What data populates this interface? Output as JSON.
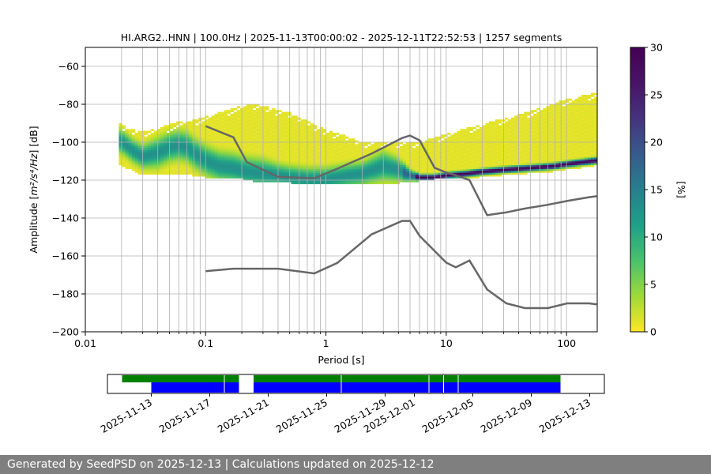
{
  "footer": "Generated by SeedPSD on 2025-12-13 | Calculations updated on 2025-12-12",
  "colors": {
    "noise_model": "#666666",
    "grid": "#b0b0b0",
    "timeline_green": "#008000",
    "timeline_blue": "#0000ff",
    "footer_bg": "#7f7f7f"
  },
  "chart_data": [
    {
      "type": "heatmap",
      "title": "HI.ARG2..HNN | 100.0Hz | 2025-11-13T00:00:02 - 2025-12-11T22:52:53 | 1257 segments",
      "xlabel": "Period [s]",
      "ylabel_prefix": "Amplitude [",
      "ylabel_math": "m²/s⁴/Hz",
      "ylabel_suffix": "] [dB]",
      "xscale": "log",
      "xlim": [
        0.01,
        180
      ],
      "ylim": [
        -200,
        -50
      ],
      "grid": true,
      "x_major_ticks": [
        0.01,
        0.1,
        1,
        10,
        100
      ],
      "x_tick_labels": [
        "0.01",
        "0.1",
        "1",
        "10",
        "100"
      ],
      "y_ticks": [
        -200,
        -180,
        -160,
        -140,
        -120,
        -100,
        -80,
        -60
      ],
      "y_tick_labels": [
        "−200",
        "−180",
        "−160",
        "−140",
        "−120",
        "−100",
        "−80",
        "−60"
      ],
      "colorbar": {
        "label": "[%]",
        "range": [
          0,
          30
        ],
        "ticks": [
          0,
          5,
          10,
          15,
          20,
          25,
          30
        ],
        "tick_labels": [
          "0",
          "5",
          "10",
          "15",
          "20",
          "25",
          "30"
        ],
        "colormap": "viridis_r"
      },
      "psd_mode_curve": {
        "period": [
          0.02,
          0.025,
          0.03,
          0.04,
          0.05,
          0.06,
          0.07,
          0.08,
          0.1,
          0.13,
          0.17,
          0.22,
          0.3,
          0.4,
          0.5,
          0.7,
          1,
          1.5,
          2,
          3,
          4,
          5,
          6,
          8,
          10,
          15,
          20,
          30,
          50,
          80,
          100,
          180
        ],
        "amplitude_db": [
          -100,
          -105,
          -108,
          -106,
          -103,
          -102,
          -103,
          -106,
          -110,
          -113,
          -114,
          -116,
          -117,
          -118,
          -119,
          -120,
          -120,
          -118,
          -117,
          -113,
          -115,
          -118,
          -119,
          -119,
          -118,
          -117,
          -116,
          -115,
          -114,
          -113,
          -112,
          -110
        ],
        "spread_db": [
          4,
          4,
          4,
          5,
          5,
          5,
          5,
          5,
          5,
          5,
          5,
          5,
          5,
          4,
          4,
          4,
          4,
          4,
          4,
          5,
          4,
          2,
          1,
          1,
          1,
          1,
          1,
          1,
          1,
          1,
          1,
          1
        ]
      },
      "low_percent_envelope": {
        "period": [
          0.018,
          0.03,
          0.05,
          0.1,
          0.2,
          0.3,
          0.5,
          1,
          2,
          4,
          6,
          8,
          10,
          20,
          30,
          50,
          100,
          180
        ],
        "upper_db": [
          -91,
          -95,
          -92,
          -87,
          -81,
          -81,
          -85,
          -94,
          -100,
          -101,
          -100,
          -98,
          -96,
          -91,
          -88,
          -84,
          -78,
          -74
        ],
        "lower_db": [
          -112,
          -117,
          -117,
          -118,
          -119,
          -121,
          -121,
          -122,
          -122,
          -121,
          -120,
          -119,
          -119,
          -118,
          -117,
          -116,
          -115,
          -112
        ]
      },
      "series": [
        {
          "period": [
            0.1,
            0.17,
            0.22,
            0.4,
            0.8,
            1.24,
            2.4,
            4.3,
            5,
            6,
            8,
            10,
            12,
            15.6,
            21.9,
            31.6,
            45,
            70,
            101,
            154,
            178
          ],
          "amplitude_db": [
            -91.5,
            -97.4,
            -110.5,
            -118.3,
            -119,
            -114,
            -106,
            -97.8,
            -96.5,
            -99,
            -113.5,
            -116,
            -117.5,
            -120,
            -138.5,
            -137,
            -135,
            -133,
            -131,
            -129,
            -128.5
          ]
        },
        {
          "period": [
            0.1,
            0.17,
            0.4,
            0.8,
            1.24,
            2.4,
            4.3,
            5,
            6,
            10,
            12,
            15.6,
            21.9,
            31.6,
            45,
            70,
            101,
            154,
            178
          ],
          "amplitude_db": [
            -168,
            -166.7,
            -166.7,
            -169.2,
            -163.7,
            -148.6,
            -141.5,
            -141.5,
            -149.4,
            -163.5,
            -166,
            -162.4,
            -177.7,
            -185,
            -187.5,
            -187.5,
            -185,
            -185,
            -185.5
          ]
        }
      ]
    },
    {
      "type": "timeline",
      "xlim": [
        "2025-11-10",
        "2025-12-14"
      ],
      "x_ticks": [
        "2025-11-13",
        "2025-11-17",
        "2025-11-21",
        "2025-11-25",
        "2025-11-29",
        "2025-12-01",
        "2025-12-05",
        "2025-12-09",
        "2025-12-13"
      ],
      "green_segments": [
        [
          "2025-11-11",
          "2025-11-19"
        ],
        [
          "2025-11-20",
          "2025-12-02"
        ],
        [
          "2025-12-02",
          "2025-12-11"
        ]
      ],
      "blue_segments": [
        [
          "2025-11-13",
          "2025-11-19"
        ],
        [
          "2025-11-20",
          "2025-12-02"
        ],
        [
          "2025-12-02",
          "2025-12-11"
        ]
      ],
      "gap_markers": [
        "2025-11-18",
        "2025-11-26",
        "2025-12-02",
        "2025-12-03",
        "2025-12-04"
      ]
    }
  ]
}
